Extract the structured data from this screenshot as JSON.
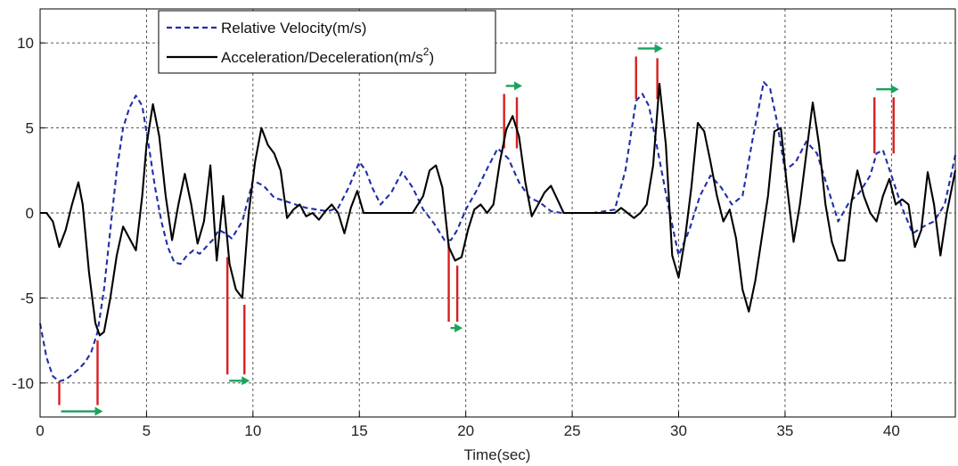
{
  "chart_data": {
    "type": "line",
    "title": "",
    "xlabel": "Time(sec)",
    "ylabel": "",
    "xlim": [
      0,
      43
    ],
    "ylim": [
      -12,
      12
    ],
    "x_ticks": [
      0,
      5,
      10,
      15,
      20,
      25,
      30,
      35,
      40
    ],
    "y_ticks": [
      -10,
      -5,
      0,
      5,
      10
    ],
    "grid": true,
    "legend_position": "top-left",
    "legend": {
      "velocity_label": "Relative Velocity(m/s)",
      "accel_label_main": "Acceleration/Deceleration(m/s",
      "accel_label_sup": "2",
      "accel_label_end": ")"
    },
    "series": [
      {
        "name": "Relative Velocity(m/s)",
        "style": "dashed",
        "color": "#1f2fa8",
        "x": [
          0,
          0.3,
          0.6,
          0.9,
          1.2,
          1.5,
          1.8,
          2.1,
          2.4,
          2.7,
          3.0,
          3.3,
          3.6,
          3.9,
          4.2,
          4.5,
          4.8,
          5.1,
          5.4,
          5.7,
          6.0,
          6.3,
          6.6,
          6.9,
          7.2,
          7.5,
          7.8,
          8.1,
          8.4,
          8.7,
          9.0,
          9.5,
          10.0,
          10.5,
          11.0,
          11.5,
          12.0,
          12.5,
          13.0,
          13.5,
          14.0,
          14.5,
          15.0,
          15.3,
          15.6,
          16.0,
          16.5,
          17.0,
          17.5,
          18.0,
          18.5,
          19.0,
          19.3,
          19.6,
          20.0,
          20.5,
          21.0,
          21.5,
          22.0,
          22.5,
          23.0,
          23.5,
          24.0,
          24.5,
          25.0,
          26.0,
          27.0,
          27.5,
          28.0,
          28.3,
          28.6,
          29.0,
          29.5,
          30.0,
          30.5,
          31.0,
          31.5,
          32.0,
          32.5,
          33.0,
          33.5,
          34.0,
          34.3,
          34.6,
          35.0,
          35.5,
          36.0,
          36.5,
          37.0,
          37.5,
          38.0,
          38.5,
          39.0,
          39.3,
          39.6,
          40.0,
          40.5,
          41.0,
          41.5,
          42.0,
          42.5,
          43.0
        ],
        "values": [
          -6.5,
          -8.5,
          -9.6,
          -9.9,
          -9.8,
          -9.5,
          -9.2,
          -8.8,
          -8.2,
          -7.0,
          -4.5,
          -1.0,
          2.5,
          5.0,
          6.2,
          6.9,
          6.3,
          4.0,
          1.5,
          -0.5,
          -2.0,
          -2.9,
          -3.0,
          -2.5,
          -2.2,
          -2.4,
          -2.0,
          -1.6,
          -1.0,
          -1.2,
          -1.5,
          -0.5,
          1.9,
          1.6,
          0.9,
          0.7,
          0.5,
          0.3,
          0.2,
          0.1,
          0.3,
          1.5,
          3.0,
          2.5,
          1.5,
          0.5,
          1.2,
          2.4,
          1.5,
          0.2,
          -0.6,
          -1.6,
          -1.6,
          -1.0,
          0.2,
          1.3,
          2.6,
          3.8,
          3.2,
          1.8,
          0.9,
          0.6,
          0.1,
          0.0,
          0.0,
          0.0,
          0.2,
          2.5,
          6.6,
          7.0,
          6.3,
          3.8,
          0.5,
          -2.5,
          -1.0,
          1.0,
          2.2,
          1.5,
          0.5,
          1.0,
          4.5,
          7.7,
          7.3,
          5.5,
          2.5,
          3.0,
          4.2,
          3.5,
          1.5,
          -0.5,
          0.6,
          1.2,
          2.2,
          3.5,
          3.7,
          2.2,
          0.3,
          -1.2,
          -0.8,
          -0.5,
          0.5,
          3.4
        ]
      },
      {
        "name": "Acceleration/Deceleration(m/s2)",
        "style": "solid",
        "color": "#000000",
        "x": [
          0,
          0.3,
          0.6,
          0.9,
          1.2,
          1.5,
          1.8,
          2.0,
          2.3,
          2.6,
          2.8,
          3.0,
          3.3,
          3.6,
          3.9,
          4.2,
          4.5,
          4.8,
          5.0,
          5.3,
          5.6,
          5.9,
          6.2,
          6.5,
          6.8,
          7.1,
          7.4,
          7.7,
          8.0,
          8.3,
          8.6,
          8.9,
          9.2,
          9.5,
          9.8,
          10.1,
          10.4,
          10.7,
          11.0,
          11.3,
          11.6,
          11.9,
          12.2,
          12.5,
          12.8,
          13.1,
          13.4,
          13.7,
          14.0,
          14.3,
          14.6,
          14.9,
          15.2,
          15.5,
          15.8,
          16.1,
          16.5,
          17.0,
          17.5,
          18.0,
          18.3,
          18.6,
          18.9,
          19.2,
          19.5,
          19.8,
          20.1,
          20.4,
          20.7,
          21.0,
          21.3,
          21.6,
          21.9,
          22.2,
          22.5,
          22.8,
          23.1,
          23.4,
          23.7,
          24.0,
          24.3,
          24.6,
          25.0,
          26.0,
          27.0,
          27.3,
          27.6,
          27.9,
          28.2,
          28.5,
          28.8,
          29.1,
          29.4,
          29.7,
          30.0,
          30.3,
          30.6,
          30.9,
          31.2,
          31.5,
          31.8,
          32.1,
          32.4,
          32.7,
          33.0,
          33.3,
          33.6,
          33.9,
          34.2,
          34.5,
          34.8,
          35.1,
          35.4,
          35.7,
          36.0,
          36.3,
          36.6,
          36.9,
          37.2,
          37.5,
          37.8,
          38.1,
          38.4,
          38.7,
          39.0,
          39.3,
          39.6,
          39.9,
          40.2,
          40.5,
          40.8,
          41.1,
          41.4,
          41.7,
          42.0,
          42.3,
          42.6,
          43.0
        ],
        "values": [
          0,
          0,
          -0.5,
          -2.0,
          -1.0,
          0.5,
          1.8,
          0.5,
          -3.5,
          -6.5,
          -7.2,
          -7.0,
          -5.0,
          -2.5,
          -0.8,
          -1.5,
          -2.2,
          1.0,
          4.0,
          6.4,
          4.5,
          1.0,
          -1.6,
          0.5,
          2.3,
          0.5,
          -1.8,
          -0.5,
          2.8,
          -2.8,
          1.0,
          -3.0,
          -4.5,
          -5.0,
          0.0,
          3.0,
          5.0,
          4.0,
          3.5,
          2.5,
          -0.3,
          0.2,
          0.5,
          -0.2,
          0.0,
          -0.4,
          0.1,
          0.5,
          0.0,
          -1.2,
          0.3,
          1.3,
          0.0,
          0.0,
          0.0,
          0.0,
          0.0,
          0.0,
          0.0,
          1.0,
          2.5,
          2.8,
          1.5,
          -2.0,
          -2.8,
          -2.6,
          -1.0,
          0.2,
          0.5,
          0.0,
          0.5,
          3.0,
          4.9,
          5.7,
          4.5,
          1.8,
          -0.2,
          0.5,
          1.2,
          1.6,
          0.8,
          0.0,
          0.0,
          0.0,
          0.0,
          0.3,
          0.0,
          -0.3,
          0.0,
          0.5,
          2.8,
          7.6,
          4.0,
          -2.5,
          -3.8,
          -1.5,
          1.5,
          5.3,
          4.8,
          3.0,
          1.0,
          -0.5,
          0.2,
          -1.5,
          -4.5,
          -5.8,
          -4.0,
          -1.5,
          1.0,
          4.8,
          5.0,
          1.5,
          -1.7,
          0.5,
          3.5,
          6.5,
          4.0,
          0.5,
          -1.7,
          -2.8,
          -2.8,
          0.5,
          2.5,
          1.0,
          0.0,
          -0.5,
          1.0,
          2.0,
          0.5,
          0.8,
          0.5,
          -2.0,
          -1.0,
          2.4,
          0.5,
          -2.5,
          0.0,
          2.5
        ]
      }
    ],
    "annotations": [
      {
        "type": "shift-marker",
        "y_end": -11.3,
        "x_left": 0.9,
        "x_right": 2.7,
        "y_left": -9.9,
        "y_right": -7.5
      },
      {
        "type": "shift-marker",
        "y_end": -9.5,
        "x_left": 8.8,
        "x_right": 9.6,
        "y_left": -2.6,
        "y_right": -5.4
      },
      {
        "type": "shift-marker",
        "y_end": -6.4,
        "x_left": 19.2,
        "x_right": 19.6,
        "y_left": -1.8,
        "y_right": -3.1
      },
      {
        "type": "shift-marker",
        "y_end": 3.8,
        "x_left": 21.8,
        "x_right": 22.4,
        "y_left": 7.0,
        "y_right": 6.8
      },
      {
        "type": "shift-marker",
        "y_end": 6.7,
        "x_left": 28.0,
        "x_right": 29.0,
        "y_left": 9.2,
        "y_right": 9.1
      },
      {
        "type": "shift-marker",
        "y_end": 3.5,
        "x_left": 39.2,
        "x_right": 40.1,
        "y_left": 6.8,
        "y_right": 6.8
      }
    ],
    "annotation_colors": {
      "line": "#d81f1f",
      "arrow": "#1aa35c"
    }
  }
}
